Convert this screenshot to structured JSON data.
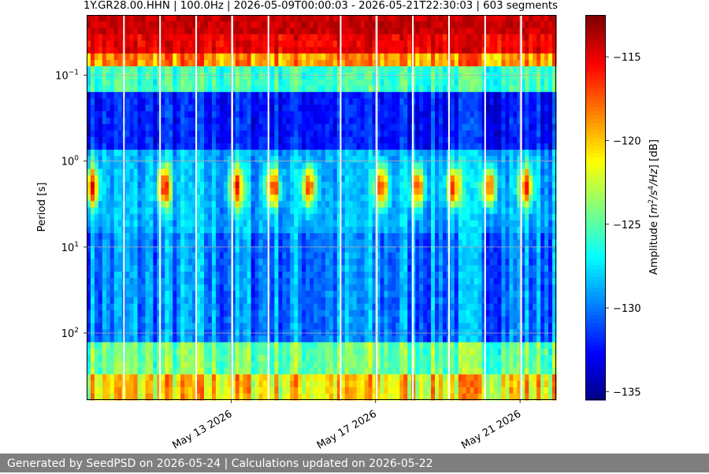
{
  "chart_data": {
    "type": "heatmap",
    "title": "1Y.GR28.00.HHN | 100.0Hz | 2026-05-09T00:00:03 - 2026-05-21T22:30:03 | 603 segments",
    "x_axis": {
      "label": "",
      "range": [
        "2026-05-09",
        "2026-05-22"
      ],
      "ticks": [
        {
          "value": "2026-05-13",
          "label": "May 13 2026"
        },
        {
          "value": "2026-05-17",
          "label": "May 17 2026"
        },
        {
          "value": "2026-05-21",
          "label": "May 21 2026"
        }
      ]
    },
    "y_axis": {
      "label": "Period [s]",
      "scale": "log",
      "inverted": true,
      "range": [
        0.02,
        600
      ],
      "ticks": [
        {
          "value": 0.1,
          "base": "10",
          "exp": "−1"
        },
        {
          "value": 1,
          "base": "10",
          "exp": "0"
        },
        {
          "value": 10,
          "base": "10",
          "exp": "1"
        },
        {
          "value": 100,
          "base": "10",
          "exp": "2"
        }
      ],
      "grid": true
    },
    "colorbar": {
      "label_prefix": "Amplitude [",
      "label_unit": "m",
      "label_sup1": "2",
      "label_mid": "/s",
      "label_sup2": "4",
      "label_tail": "/Hz",
      "label_suffix": "] [dB]",
      "colormap": "jet",
      "range": [
        -135.5,
        -112.5
      ],
      "ticks": [
        {
          "value": -115,
          "label": "−115"
        },
        {
          "value": -120,
          "label": "−120"
        },
        {
          "value": -125,
          "label": "−125"
        },
        {
          "value": -130,
          "label": "−130"
        },
        {
          "value": -135,
          "label": "−135"
        }
      ]
    },
    "data_gaps_dates": [
      "2026-05-10",
      "2026-05-11",
      "2026-05-12",
      "2026-05-13",
      "2026-05-14",
      "2026-05-16",
      "2026-05-17",
      "2026-05-18",
      "2026-05-19",
      "2026-05-20",
      "2026-05-21"
    ],
    "energy_peaks_period_s": 2,
    "energy_peak_dates": [
      "2026-05-09",
      "2026-05-11",
      "2026-05-13",
      "2026-05-14",
      "2026-05-15",
      "2026-05-17",
      "2026-05-18",
      "2026-05-19",
      "2026-05-20",
      "2026-05-21"
    ]
  },
  "footer": {
    "text": "Generated by SeedPSD on 2026-05-24 | Calculations updated on 2026-05-22"
  }
}
